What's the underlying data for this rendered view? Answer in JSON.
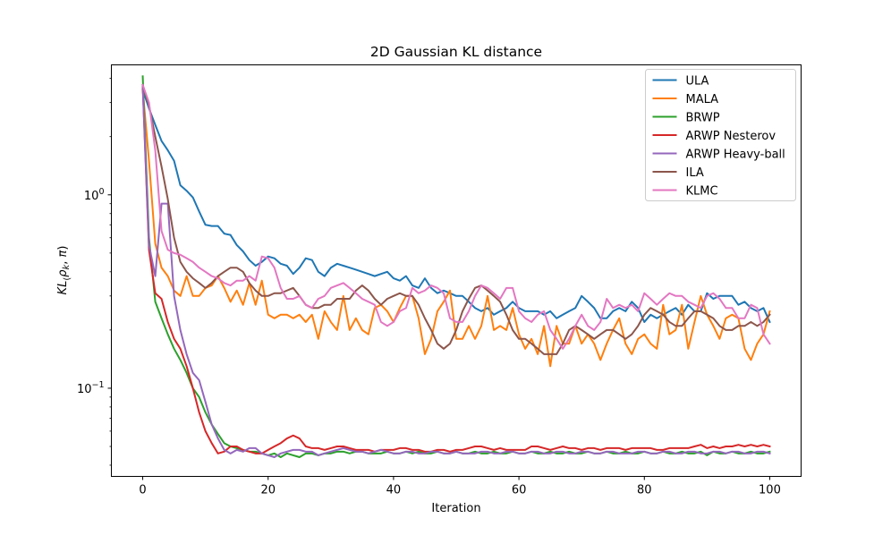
{
  "chart_data": {
    "type": "line",
    "title": "2D Gaussian KL distance",
    "xlabel": "Iteration",
    "ylabel": "KL(ρ_k, π)",
    "yscale": "log",
    "xlim": [
      -5,
      105
    ],
    "ylim": [
      0.035,
      4.7
    ],
    "x_ticks": [
      0,
      20,
      40,
      60,
      80,
      100
    ],
    "x_tick_labels": [
      "0",
      "20",
      "40",
      "60",
      "80",
      "100"
    ],
    "y_ticks": [
      1,
      0.1
    ],
    "y_tick_labels": [
      "10^0",
      "10^−1"
    ],
    "legend_position": "top-right",
    "series": [
      {
        "name": "ULA",
        "color": "#1f77b4",
        "values": [
          3.5,
          2.8,
          2.3,
          1.9,
          1.7,
          1.5,
          1.12,
          1.05,
          0.97,
          0.82,
          0.7,
          0.69,
          0.69,
          0.63,
          0.62,
          0.55,
          0.51,
          0.46,
          0.43,
          0.45,
          0.48,
          0.47,
          0.44,
          0.43,
          0.39,
          0.42,
          0.47,
          0.46,
          0.4,
          0.38,
          0.42,
          0.44,
          0.43,
          0.42,
          0.41,
          0.4,
          0.39,
          0.38,
          0.39,
          0.4,
          0.37,
          0.36,
          0.38,
          0.34,
          0.33,
          0.37,
          0.33,
          0.31,
          0.32,
          0.31,
          0.3,
          0.3,
          0.28,
          0.26,
          0.25,
          0.26,
          0.24,
          0.25,
          0.26,
          0.28,
          0.26,
          0.25,
          0.25,
          0.25,
          0.24,
          0.25,
          0.23,
          0.24,
          0.25,
          0.26,
          0.3,
          0.28,
          0.26,
          0.23,
          0.23,
          0.25,
          0.26,
          0.25,
          0.28,
          0.26,
          0.22,
          0.24,
          0.23,
          0.24,
          0.25,
          0.26,
          0.24,
          0.27,
          0.25,
          0.25,
          0.31,
          0.29,
          0.3,
          0.3,
          0.3,
          0.27,
          0.28,
          0.26,
          0.25,
          0.26,
          0.22
        ]
      },
      {
        "name": "MALA",
        "color": "#ff7f0e",
        "values": [
          3.5,
          1.5,
          0.56,
          0.42,
          0.38,
          0.32,
          0.3,
          0.38,
          0.3,
          0.3,
          0.33,
          0.34,
          0.38,
          0.33,
          0.28,
          0.32,
          0.27,
          0.35,
          0.27,
          0.36,
          0.24,
          0.23,
          0.24,
          0.24,
          0.23,
          0.24,
          0.22,
          0.24,
          0.18,
          0.25,
          0.22,
          0.2,
          0.3,
          0.2,
          0.23,
          0.2,
          0.19,
          0.26,
          0.27,
          0.25,
          0.22,
          0.26,
          0.3,
          0.3,
          0.23,
          0.15,
          0.18,
          0.25,
          0.28,
          0.32,
          0.18,
          0.18,
          0.21,
          0.18,
          0.21,
          0.3,
          0.2,
          0.21,
          0.2,
          0.26,
          0.19,
          0.16,
          0.18,
          0.15,
          0.21,
          0.13,
          0.21,
          0.17,
          0.17,
          0.21,
          0.17,
          0.19,
          0.17,
          0.14,
          0.17,
          0.2,
          0.23,
          0.17,
          0.15,
          0.18,
          0.19,
          0.17,
          0.16,
          0.27,
          0.19,
          0.2,
          0.27,
          0.16,
          0.22,
          0.3,
          0.24,
          0.21,
          0.18,
          0.23,
          0.24,
          0.23,
          0.16,
          0.14,
          0.17,
          0.19,
          0.25
        ]
      },
      {
        "name": "BRWP",
        "color": "#2ca02c",
        "values": [
          4.1,
          0.6,
          0.28,
          0.23,
          0.19,
          0.16,
          0.14,
          0.12,
          0.1,
          0.09,
          0.075,
          0.065,
          0.058,
          0.052,
          0.05,
          0.049,
          0.048,
          0.047,
          0.047,
          0.046,
          0.045,
          0.046,
          0.044,
          0.046,
          0.045,
          0.044,
          0.046,
          0.046,
          0.045,
          0.046,
          0.046,
          0.047,
          0.047,
          0.046,
          0.047,
          0.047,
          0.046,
          0.046,
          0.046,
          0.047,
          0.046,
          0.046,
          0.047,
          0.046,
          0.047,
          0.046,
          0.046,
          0.047,
          0.046,
          0.046,
          0.047,
          0.046,
          0.046,
          0.047,
          0.046,
          0.046,
          0.047,
          0.046,
          0.046,
          0.047,
          0.046,
          0.046,
          0.047,
          0.046,
          0.046,
          0.047,
          0.046,
          0.046,
          0.047,
          0.046,
          0.046,
          0.047,
          0.046,
          0.046,
          0.047,
          0.046,
          0.046,
          0.047,
          0.046,
          0.046,
          0.047,
          0.046,
          0.046,
          0.047,
          0.046,
          0.046,
          0.047,
          0.046,
          0.046,
          0.047,
          0.045,
          0.047,
          0.046,
          0.046,
          0.047,
          0.046,
          0.046,
          0.047,
          0.046,
          0.046,
          0.047
        ]
      },
      {
        "name": "ARWP Nesterov",
        "color": "#d62728",
        "values": [
          3.6,
          0.52,
          0.31,
          0.29,
          0.22,
          0.18,
          0.16,
          0.13,
          0.1,
          0.075,
          0.06,
          0.052,
          0.046,
          0.047,
          0.05,
          0.05,
          0.048,
          0.047,
          0.046,
          0.046,
          0.048,
          0.05,
          0.052,
          0.055,
          0.057,
          0.055,
          0.05,
          0.049,
          0.049,
          0.048,
          0.049,
          0.05,
          0.05,
          0.049,
          0.048,
          0.048,
          0.048,
          0.047,
          0.048,
          0.048,
          0.048,
          0.049,
          0.049,
          0.048,
          0.048,
          0.047,
          0.047,
          0.048,
          0.048,
          0.047,
          0.048,
          0.048,
          0.049,
          0.05,
          0.05,
          0.049,
          0.048,
          0.049,
          0.048,
          0.048,
          0.048,
          0.048,
          0.05,
          0.05,
          0.049,
          0.048,
          0.049,
          0.05,
          0.049,
          0.049,
          0.048,
          0.049,
          0.049,
          0.048,
          0.049,
          0.049,
          0.049,
          0.048,
          0.049,
          0.049,
          0.049,
          0.049,
          0.048,
          0.048,
          0.049,
          0.049,
          0.049,
          0.049,
          0.05,
          0.051,
          0.049,
          0.05,
          0.049,
          0.05,
          0.05,
          0.051,
          0.05,
          0.051,
          0.05,
          0.051,
          0.05
        ]
      },
      {
        "name": "ARWP Heavy-ball",
        "color": "#9467bd",
        "values": [
          3.7,
          0.55,
          0.38,
          0.9,
          0.9,
          0.3,
          0.2,
          0.15,
          0.12,
          0.11,
          0.085,
          0.065,
          0.055,
          0.048,
          0.046,
          0.048,
          0.047,
          0.049,
          0.049,
          0.046,
          0.045,
          0.044,
          0.046,
          0.047,
          0.048,
          0.048,
          0.047,
          0.047,
          0.045,
          0.046,
          0.047,
          0.048,
          0.049,
          0.048,
          0.047,
          0.047,
          0.046,
          0.047,
          0.048,
          0.047,
          0.046,
          0.046,
          0.047,
          0.047,
          0.046,
          0.046,
          0.047,
          0.047,
          0.046,
          0.046,
          0.047,
          0.046,
          0.046,
          0.046,
          0.047,
          0.047,
          0.046,
          0.046,
          0.047,
          0.047,
          0.046,
          0.046,
          0.047,
          0.047,
          0.046,
          0.046,
          0.047,
          0.047,
          0.046,
          0.046,
          0.047,
          0.047,
          0.046,
          0.046,
          0.047,
          0.047,
          0.046,
          0.046,
          0.046,
          0.047,
          0.047,
          0.046,
          0.046,
          0.047,
          0.047,
          0.046,
          0.046,
          0.047,
          0.047,
          0.046,
          0.046,
          0.047,
          0.047,
          0.046,
          0.047,
          0.047,
          0.046,
          0.046,
          0.047,
          0.047,
          0.046
        ]
      },
      {
        "name": "ILA",
        "color": "#8c564b",
        "values": [
          3.7,
          2.9,
          2.0,
          1.4,
          0.95,
          0.6,
          0.45,
          0.4,
          0.37,
          0.35,
          0.33,
          0.35,
          0.38,
          0.4,
          0.42,
          0.42,
          0.4,
          0.35,
          0.32,
          0.3,
          0.3,
          0.31,
          0.31,
          0.32,
          0.33,
          0.3,
          0.27,
          0.26,
          0.26,
          0.27,
          0.27,
          0.29,
          0.29,
          0.29,
          0.32,
          0.34,
          0.32,
          0.29,
          0.27,
          0.29,
          0.3,
          0.31,
          0.3,
          0.3,
          0.27,
          0.23,
          0.2,
          0.17,
          0.16,
          0.17,
          0.2,
          0.25,
          0.29,
          0.33,
          0.34,
          0.32,
          0.3,
          0.28,
          0.24,
          0.2,
          0.18,
          0.18,
          0.17,
          0.16,
          0.15,
          0.15,
          0.15,
          0.17,
          0.2,
          0.21,
          0.2,
          0.19,
          0.18,
          0.19,
          0.2,
          0.2,
          0.19,
          0.18,
          0.19,
          0.21,
          0.24,
          0.26,
          0.25,
          0.24,
          0.22,
          0.21,
          0.21,
          0.23,
          0.25,
          0.25,
          0.24,
          0.23,
          0.21,
          0.2,
          0.2,
          0.21,
          0.21,
          0.22,
          0.21,
          0.22,
          0.24
        ]
      },
      {
        "name": "KLMC",
        "color": "#e377c2",
        "values": [
          3.7,
          3.0,
          1.7,
          0.65,
          0.52,
          0.5,
          0.49,
          0.47,
          0.45,
          0.42,
          0.4,
          0.38,
          0.37,
          0.35,
          0.34,
          0.36,
          0.36,
          0.38,
          0.36,
          0.48,
          0.47,
          0.42,
          0.33,
          0.29,
          0.29,
          0.3,
          0.27,
          0.26,
          0.29,
          0.3,
          0.33,
          0.34,
          0.35,
          0.33,
          0.31,
          0.29,
          0.28,
          0.27,
          0.22,
          0.21,
          0.22,
          0.25,
          0.26,
          0.33,
          0.31,
          0.32,
          0.34,
          0.33,
          0.31,
          0.23,
          0.22,
          0.22,
          0.25,
          0.3,
          0.34,
          0.33,
          0.31,
          0.29,
          0.33,
          0.33,
          0.25,
          0.23,
          0.22,
          0.24,
          0.25,
          0.2,
          0.18,
          0.16,
          0.18,
          0.21,
          0.24,
          0.21,
          0.2,
          0.22,
          0.29,
          0.26,
          0.27,
          0.26,
          0.27,
          0.25,
          0.31,
          0.29,
          0.27,
          0.29,
          0.31,
          0.3,
          0.3,
          0.28,
          0.27,
          0.26,
          0.3,
          0.31,
          0.29,
          0.26,
          0.26,
          0.23,
          0.23,
          0.27,
          0.26,
          0.19,
          0.17
        ]
      }
    ]
  }
}
